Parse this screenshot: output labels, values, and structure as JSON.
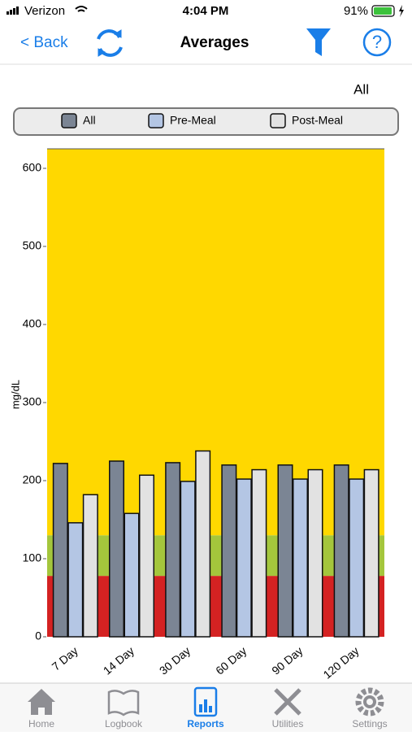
{
  "status_bar": {
    "carrier": "Verizon",
    "time": "4:04 PM",
    "battery": "91%"
  },
  "nav": {
    "back": "< Back",
    "title": "Averages"
  },
  "filter_label": "All",
  "chart_data": {
    "type": "bar",
    "categories": [
      "7 Day",
      "14 Day",
      "30 Day",
      "60 Day",
      "90 Day",
      "120 Day"
    ],
    "series": [
      {
        "name": "All",
        "color": "#7b8594",
        "values": [
          222,
          225,
          223,
          220,
          220,
          220
        ]
      },
      {
        "name": "Pre-Meal",
        "color": "#b4c6e4",
        "values": [
          146,
          158,
          199,
          202,
          202,
          202
        ]
      },
      {
        "name": "Post-Meal",
        "color": "#e2e2e2",
        "values": [
          182,
          207,
          238,
          214,
          214,
          214
        ]
      }
    ],
    "ylim": [
      0,
      625
    ],
    "yticks": [
      0,
      100,
      200,
      300,
      400,
      500,
      600
    ],
    "y_label": "mg/dL",
    "bands": [
      {
        "from": 0,
        "to": 78,
        "color": "#d42222"
      },
      {
        "from": 78,
        "to": 130,
        "color": "#a4c63c"
      },
      {
        "from": 130,
        "to": 625,
        "color": "#ffd800"
      }
    ]
  },
  "tab_bar": {
    "items": [
      "Home",
      "Logbook",
      "Reports",
      "Utilities",
      "Settings"
    ],
    "active": 2
  }
}
